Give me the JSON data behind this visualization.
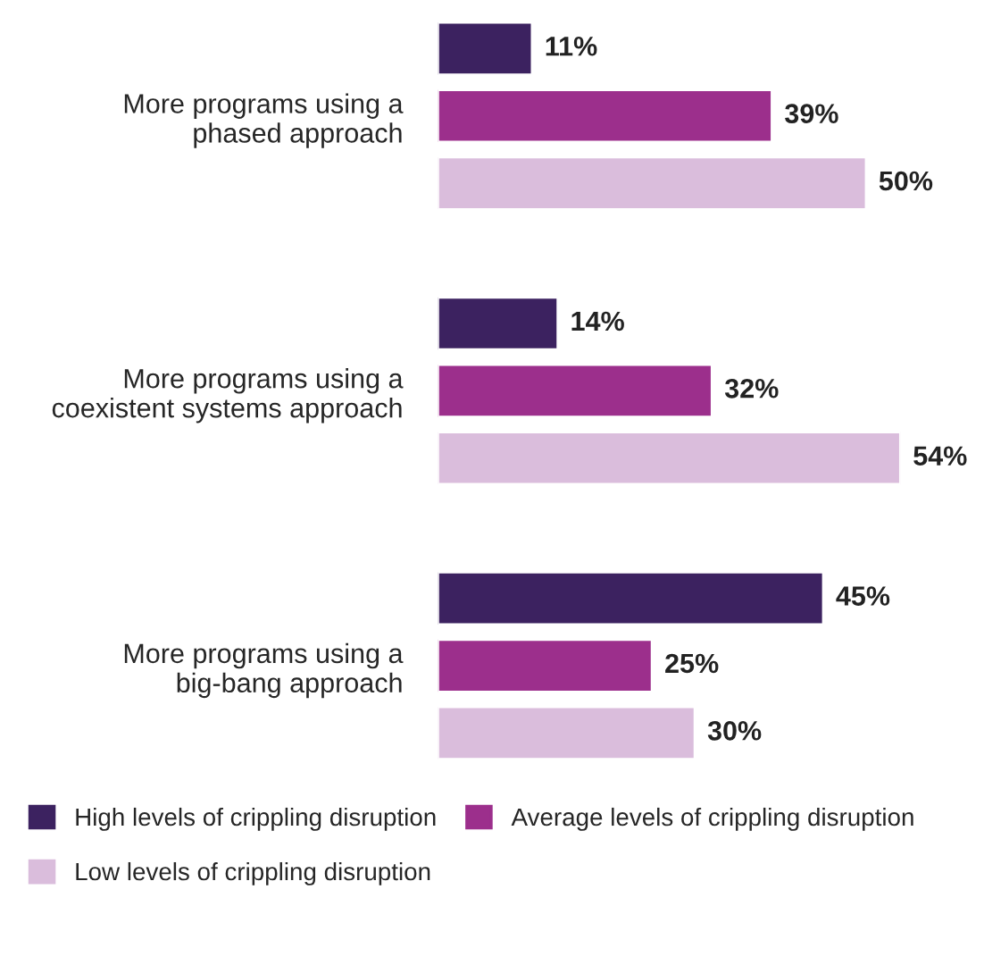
{
  "chart_data": {
    "type": "bar",
    "orientation": "horizontal",
    "categories": [
      "More programs using a\nphased approach",
      "More programs using a\ncoexistent systems approach",
      "More programs using a\nbig-bang approach"
    ],
    "series": [
      {
        "name": "High levels of crippling disruption",
        "color": "#3c2260",
        "values": [
          11,
          14,
          45
        ],
        "value_labels": [
          "11%",
          "14%",
          "45%"
        ]
      },
      {
        "name": "Average levels of crippling disruption",
        "color": "#9c2f8c",
        "values": [
          39,
          32,
          25
        ],
        "value_labels": [
          "39%",
          "32%",
          "25%"
        ]
      },
      {
        "name": "Low levels of crippling disruption",
        "color": "#dabddc",
        "values": [
          50,
          54,
          30
        ],
        "value_labels": [
          "50%",
          "54%",
          "30%"
        ]
      }
    ],
    "legend": "bottom",
    "grid": false
  }
}
